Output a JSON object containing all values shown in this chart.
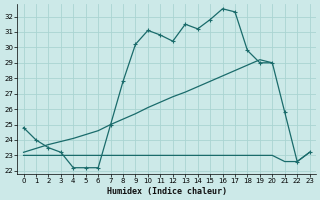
{
  "xlabel": "Humidex (Indice chaleur)",
  "xlim": [
    -0.5,
    23.5
  ],
  "ylim": [
    21.8,
    32.8
  ],
  "yticks": [
    22,
    23,
    24,
    25,
    26,
    27,
    28,
    29,
    30,
    31,
    32
  ],
  "x_ticks": [
    0,
    1,
    2,
    3,
    4,
    5,
    6,
    7,
    8,
    9,
    10,
    11,
    12,
    13,
    14,
    15,
    16,
    17,
    18,
    19,
    20,
    21,
    22,
    23
  ],
  "bg_color": "#cce9e8",
  "grid_color": "#aad4d2",
  "line_color": "#1a6b6b",
  "curve1_x": [
    0,
    1,
    2,
    3,
    4,
    5,
    6,
    7,
    8,
    9,
    10,
    11,
    12,
    13,
    14,
    15,
    16,
    17,
    18,
    19,
    20,
    21,
    22,
    23
  ],
  "curve1_y": [
    24.8,
    24.0,
    23.5,
    23.2,
    22.2,
    22.2,
    22.2,
    25.0,
    27.8,
    30.2,
    31.1,
    30.8,
    30.4,
    31.5,
    31.2,
    31.8,
    32.5,
    32.3,
    29.8,
    29.0,
    29.0,
    25.8,
    22.6,
    23.2
  ],
  "curve2_x": [
    0,
    20,
    21,
    22,
    23
  ],
  "curve2_y": [
    23.0,
    23.0,
    22.6,
    22.6,
    23.2
  ],
  "curve3_x": [
    0,
    1,
    2,
    3,
    4,
    5,
    6,
    7,
    8,
    9,
    10,
    11,
    12,
    13,
    14,
    15,
    16,
    17,
    18,
    19,
    20
  ],
  "curve3_y": [
    23.2,
    23.45,
    23.7,
    23.9,
    24.1,
    24.35,
    24.6,
    25.0,
    25.35,
    25.7,
    26.1,
    26.45,
    26.8,
    27.1,
    27.45,
    27.8,
    28.15,
    28.5,
    28.85,
    29.2,
    29.0
  ]
}
